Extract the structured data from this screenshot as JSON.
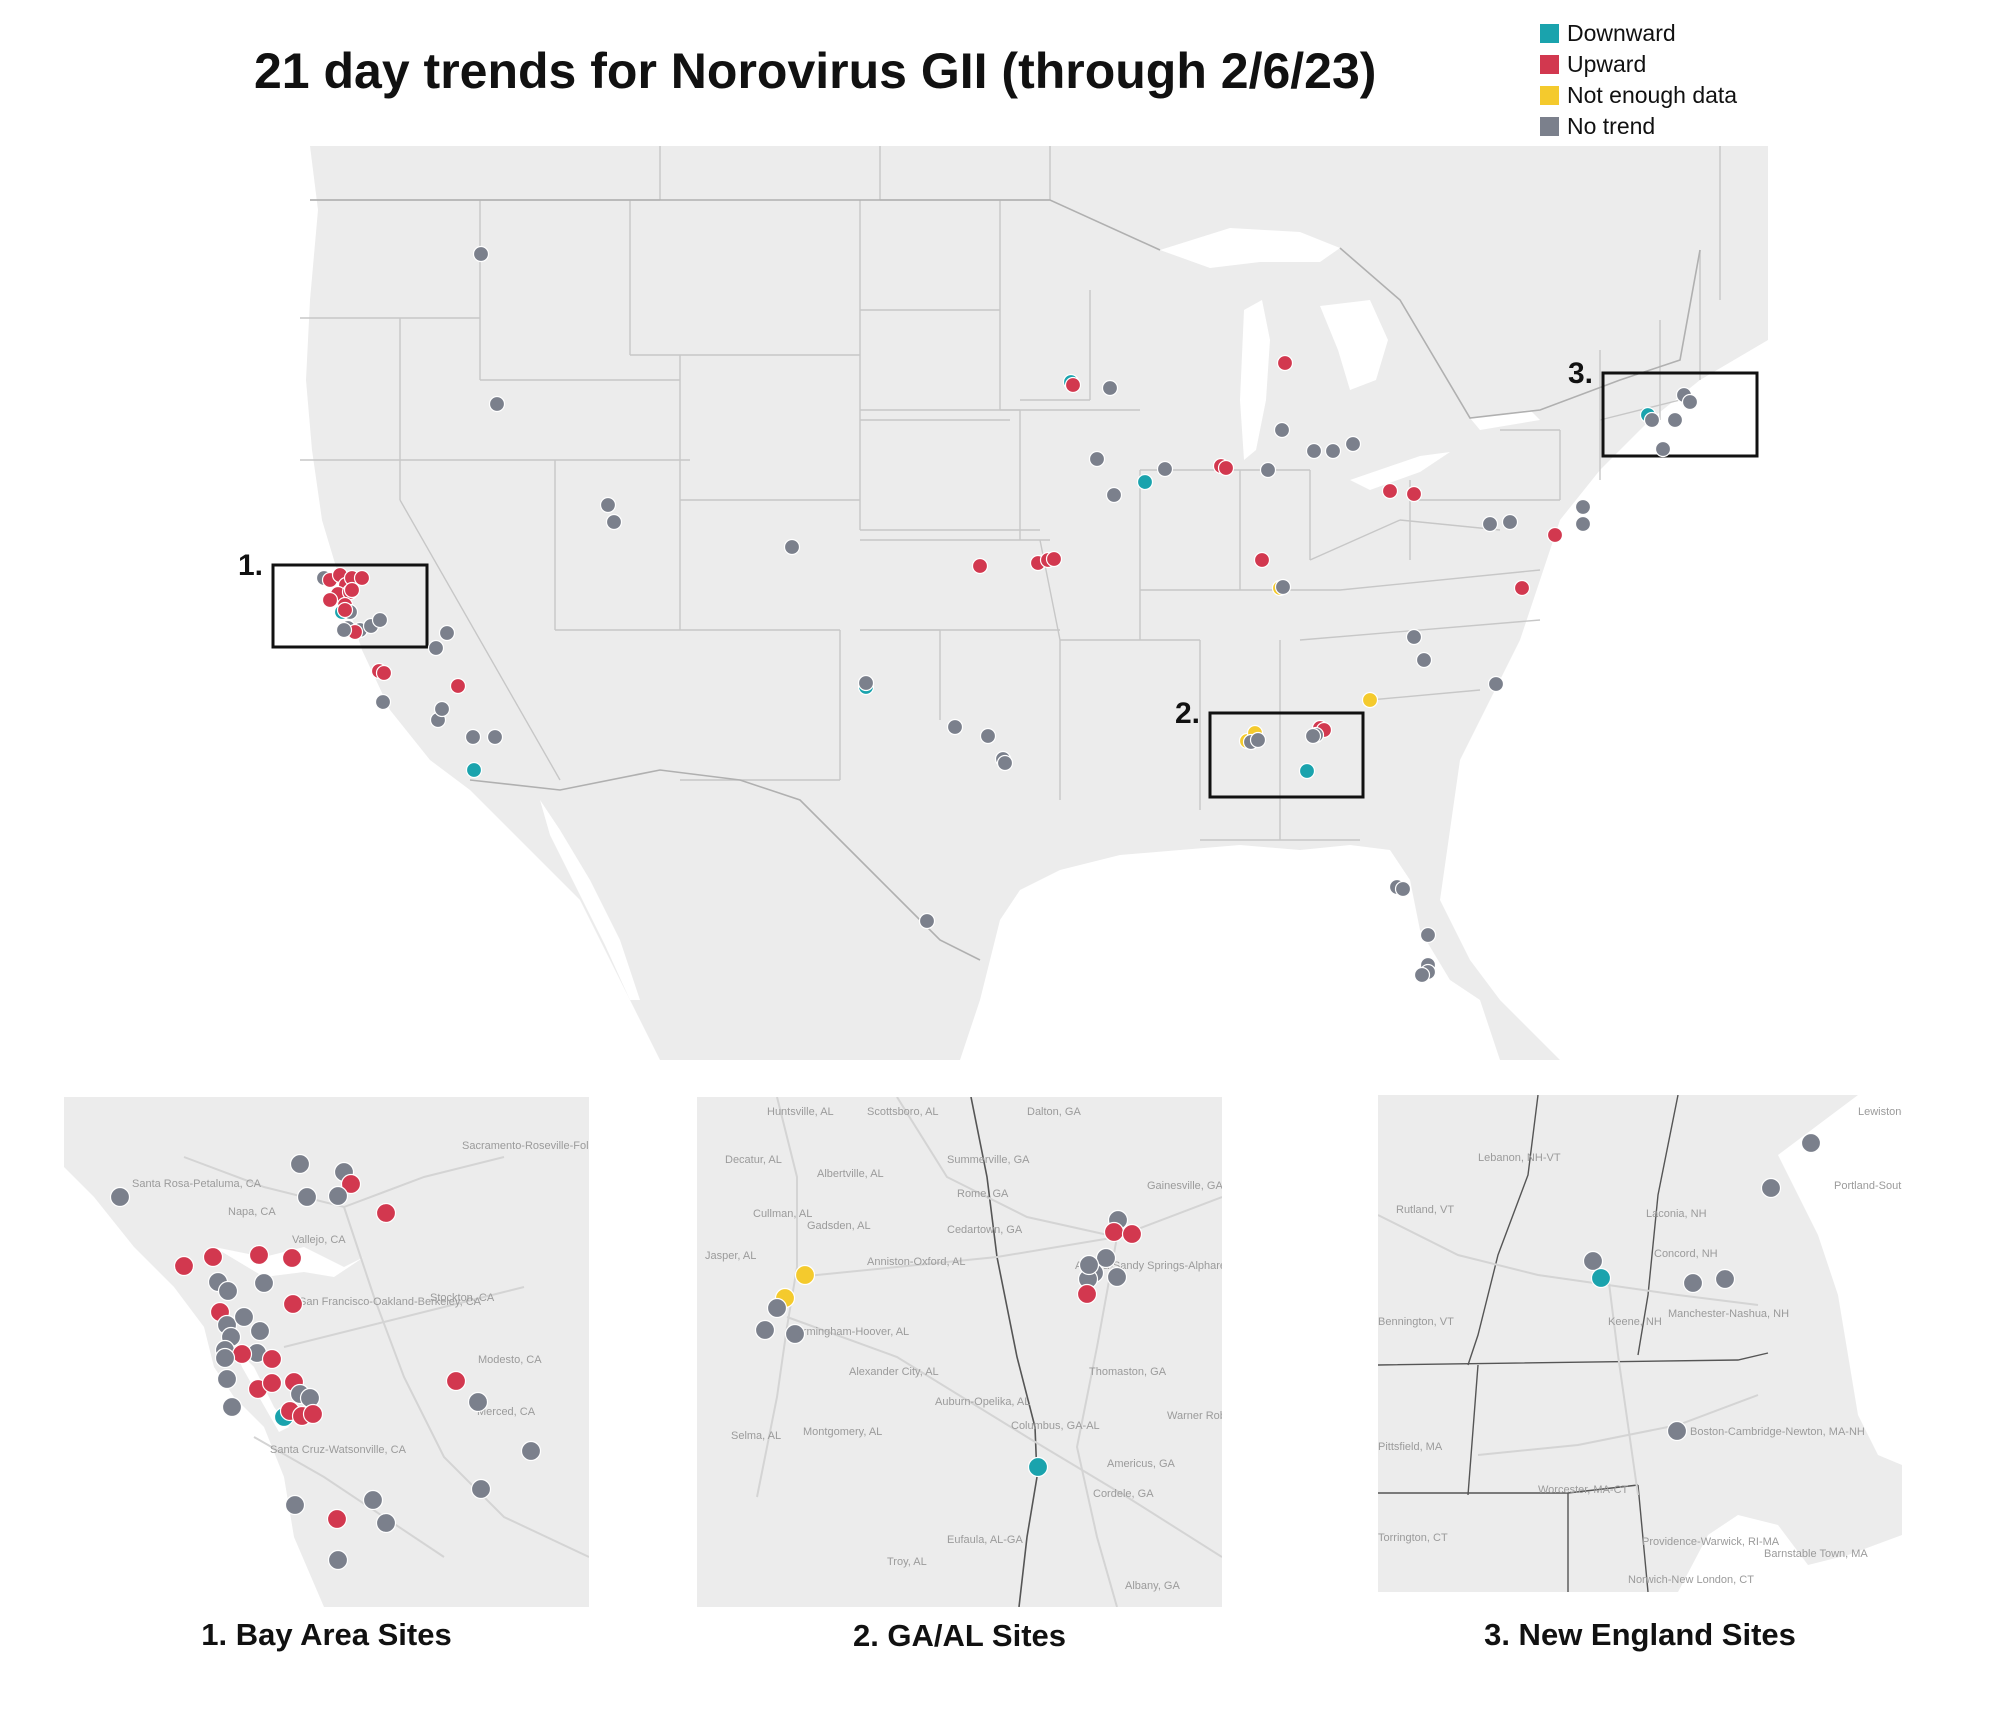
{
  "title": "21 day trends for Norovirus GII (through 2/6/23)",
  "legend": [
    {
      "label": "Downward",
      "color": "#1aa3ad"
    },
    {
      "label": "Upward",
      "color": "#d2384f"
    },
    {
      "label": "Not enough data",
      "color": "#f4ca2d"
    },
    {
      "label": "No trend",
      "color": "#7b808c"
    }
  ],
  "map_style": {
    "land": "#ececec",
    "water": "#ffffff",
    "state_border": "#c7c7c7",
    "place_label": "#9b9b9b"
  },
  "main_map": {
    "boxes": [
      {
        "label": "1."
      },
      {
        "label": "2."
      },
      {
        "label": "3."
      }
    ]
  },
  "insets": [
    {
      "title": "1. Bay Area Sites",
      "places": [
        "Sacramento-Roseville-Folsom, CA",
        "Santa Rosa-Petaluma, CA",
        "Napa, CA",
        "Vallejo, CA",
        "San Francisco-Oakland-Berkeley, CA",
        "Stockton, CA",
        "Modesto, CA",
        "Merced, CA",
        "Santa Cruz-Watsonville, CA"
      ]
    },
    {
      "title": "2. GA/AL Sites",
      "places": [
        "Huntsville, AL",
        "Scottsboro, AL",
        "Dalton, GA",
        "Decatur, AL",
        "Summerville, GA",
        "Albertville, AL",
        "Rome, GA",
        "Gainesville, GA",
        "Cullman, AL",
        "Gadsden, AL",
        "Cedartown, GA",
        "Jasper, AL",
        "Anniston-Oxford, AL",
        "Atlanta-Sandy Springs-Alpharetta, GA",
        "Birmingham-Hoover, AL",
        "Alexander City, AL",
        "Thomaston, GA",
        "Auburn-Opelika, AL",
        "Warner Robins, GA",
        "Columbus, GA-AL",
        "Selma, AL",
        "Montgomery, AL",
        "Americus, GA",
        "Cordele, GA",
        "Eufaula, AL-GA",
        "Troy, AL",
        "Albany, GA"
      ]
    },
    {
      "title": "3. New England Sites",
      "places": [
        "Lewiston-Auburn, ME",
        "Lebanon, NH-VT",
        "Portland-South Portland, ME",
        "Rutland, VT",
        "Laconia, NH",
        "Concord, NH",
        "Bennington, VT",
        "Keene, NH",
        "Manchester-Nashua, NH",
        "Boston-Cambridge-Newton, MA-NH",
        "Pittsfield, MA",
        "Worcester, MA-CT",
        "Torrington, CT",
        "Providence-Warwick, RI-MA",
        "Barnstable Town, MA",
        "Norwich-New London, CT"
      ]
    }
  ]
}
